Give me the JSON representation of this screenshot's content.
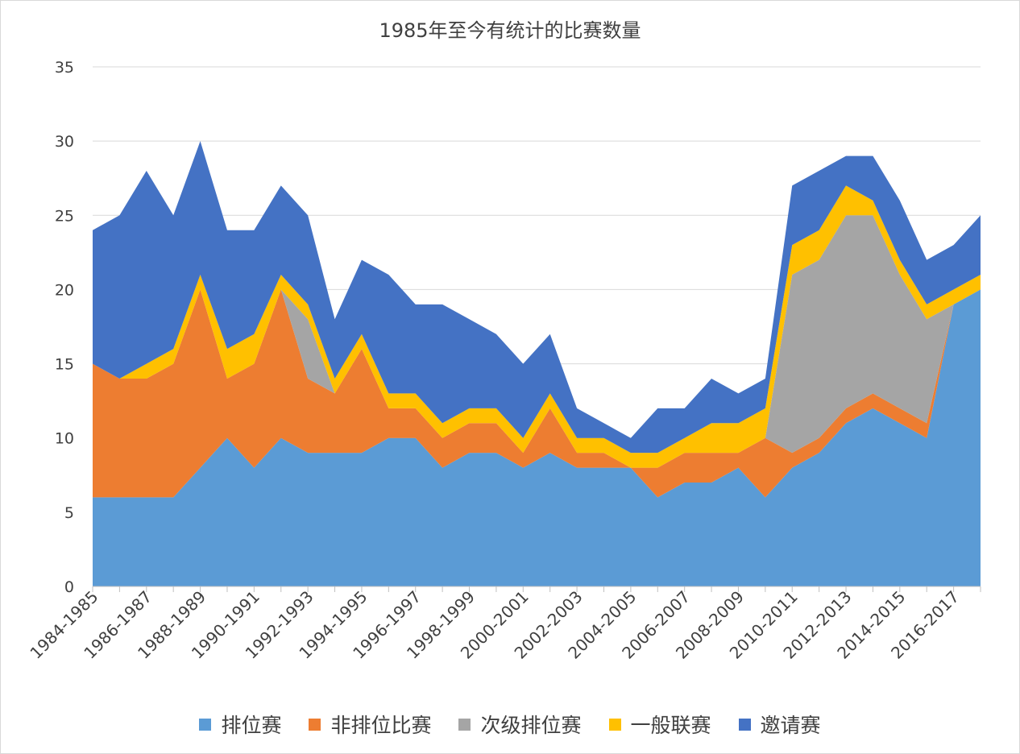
{
  "chart_data": {
    "type": "area",
    "stacked": true,
    "title": "1985年至今有统计的比赛数量",
    "xlabel": "",
    "ylabel": "",
    "ylim": [
      0,
      35
    ],
    "yticks": [
      0,
      5,
      10,
      15,
      20,
      25,
      30,
      35
    ],
    "grid": true,
    "legend_position": "bottom",
    "x": [
      "1984-1985",
      "1985-1986",
      "1986-1987",
      "1987-1988",
      "1988-1989",
      "1989-1990",
      "1990-1991",
      "1991-1992",
      "1992-1993",
      "1993-1994",
      "1994-1995",
      "1995-1996",
      "1996-1997",
      "1997-1998",
      "1998-1999",
      "1999-2000",
      "2000-2001",
      "2001-2002",
      "2002-2003",
      "2003-2004",
      "2004-2005",
      "2005-2006",
      "2006-2007",
      "2007-2008",
      "2008-2009",
      "2009-2010",
      "2010-2011",
      "2011-2012",
      "2012-2013",
      "2013-2014",
      "2014-2015",
      "2015-2016",
      "2016-2017",
      "2017-2018"
    ],
    "xtick_labels": [
      "1984-1985",
      "1986-1987",
      "1988-1989",
      "1990-1991",
      "1992-1993",
      "1994-1995",
      "1996-1997",
      "1998-1999",
      "2000-2001",
      "2002-2003",
      "2004-2005",
      "2006-2007",
      "2008-2009",
      "2010-2011",
      "2012-2013",
      "2014-2015",
      "2016-2017"
    ],
    "series": [
      {
        "name": "排位赛",
        "color": "#5b9bd5",
        "values": [
          6,
          6,
          6,
          6,
          8,
          10,
          8,
          10,
          9,
          9,
          9,
          10,
          10,
          8,
          9,
          9,
          8,
          9,
          8,
          8,
          8,
          6,
          7,
          7,
          8,
          6,
          8,
          9,
          11,
          12,
          11,
          10,
          19,
          20
        ]
      },
      {
        "name": "非排位比赛",
        "color": "#ed7d31",
        "values": [
          9,
          8,
          8,
          9,
          12,
          4,
          7,
          10,
          5,
          4,
          7,
          2,
          2,
          2,
          2,
          2,
          1,
          3,
          1,
          1,
          0,
          2,
          2,
          2,
          1,
          4,
          1,
          1,
          1,
          1,
          1,
          1,
          0,
          0
        ]
      },
      {
        "name": "次级排位赛",
        "color": "#a5a5a5",
        "values": [
          0,
          0,
          0,
          0,
          0,
          0,
          0,
          0,
          4,
          0,
          0,
          0,
          0,
          0,
          0,
          0,
          0,
          0,
          0,
          0,
          0,
          0,
          0,
          0,
          0,
          0,
          12,
          12,
          13,
          12,
          9,
          7,
          0,
          0
        ]
      },
      {
        "name": "一般联赛",
        "color": "#ffc000",
        "values": [
          0,
          0,
          1,
          1,
          1,
          2,
          2,
          1,
          1,
          1,
          1,
          1,
          1,
          1,
          1,
          1,
          1,
          1,
          1,
          1,
          1,
          1,
          1,
          2,
          2,
          2,
          2,
          2,
          2,
          1,
          1,
          1,
          1,
          1
        ]
      },
      {
        "name": "邀请赛",
        "color": "#4472c4",
        "values": [
          9,
          11,
          13,
          9,
          9,
          8,
          7,
          6,
          6,
          4,
          5,
          8,
          6,
          8,
          6,
          5,
          5,
          4,
          2,
          1,
          1,
          3,
          2,
          3,
          2,
          2,
          4,
          4,
          2,
          3,
          4,
          3,
          3,
          4
        ]
      }
    ]
  }
}
